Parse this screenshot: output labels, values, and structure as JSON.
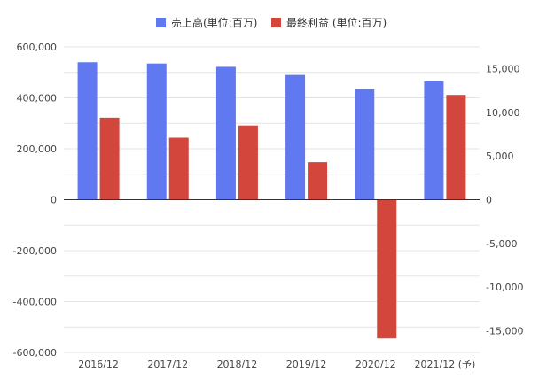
{
  "chart_data": {
    "type": "bar",
    "categories": [
      "2016/12",
      "2017/12",
      "2018/12",
      "2019/12",
      "2020/12",
      "2021/12 (予)"
    ],
    "series": [
      {
        "name": "売上高(単位:百万)",
        "axis": "left",
        "color": "#6078f0",
        "values": [
          540000,
          535000,
          522000,
          490000,
          434000,
          465000
        ]
      },
      {
        "name": "最終利益 (単位:百万)",
        "axis": "right",
        "color": "#d2463c",
        "values": [
          9400,
          7100,
          8500,
          4300,
          -15900,
          12000
        ]
      }
    ],
    "left_axis": {
      "range": [
        -600000,
        600000
      ],
      "ticks": [
        600000,
        400000,
        200000,
        0,
        -200000,
        -400000,
        -600000
      ],
      "tick_labels": [
        "600,000",
        "400,000",
        "200,000",
        "0",
        "-200,000",
        "-400,000",
        "-600,000"
      ]
    },
    "right_axis": {
      "range": [
        -17500,
        17500
      ],
      "ticks": [
        15000,
        10000,
        5000,
        0,
        -5000,
        -10000,
        -15000
      ],
      "tick_labels": [
        "15,000",
        "10,000",
        "5,000",
        "0",
        "-5,000",
        "-10,000",
        "-15,000"
      ]
    },
    "grid": true,
    "legend_position": "top-center"
  }
}
